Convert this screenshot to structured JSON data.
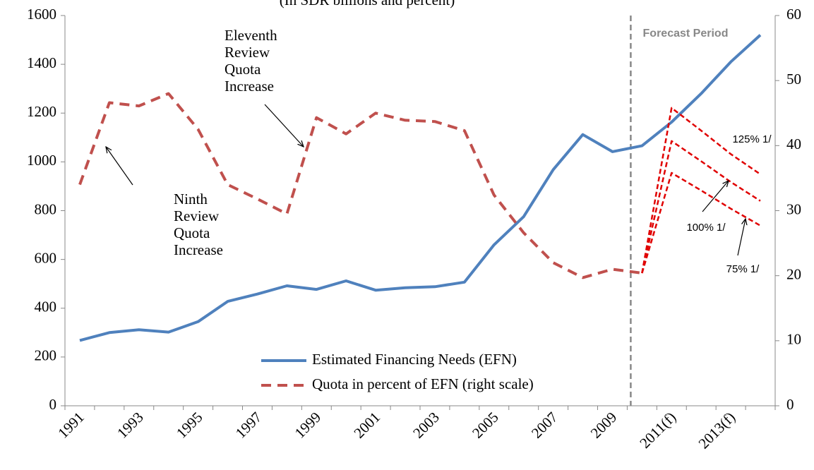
{
  "chart_data": {
    "type": "line",
    "subtitle": "(In SDR billions and percent)",
    "categories": [
      "1991",
      null,
      "1993",
      null,
      "1995",
      null,
      "1997",
      null,
      "1999",
      null,
      "2001",
      null,
      "2003",
      null,
      "2005",
      null,
      "2007",
      null,
      "2009",
      null,
      "2011(f)",
      null,
      "2013(f)",
      null
    ],
    "series": [
      {
        "name": "Estimated Financing Needs (EFN)",
        "color": "#4f81bd",
        "dashed": false,
        "values": [
          268,
          300,
          312,
          302,
          345,
          428,
          458,
          492,
          477,
          512,
          474,
          484,
          488,
          507,
          660,
          775,
          968,
          1112,
          1042,
          1066,
          1163,
          1280,
          1410,
          1520
        ]
      },
      {
        "name": "Quota in percent of EFN (right scale)",
        "color": "#c0504d",
        "dashed": true,
        "axis": "y2",
        "values": [
          34,
          46.6,
          46.1,
          48,
          42.5,
          34,
          31.8,
          29.5,
          44.3,
          41.8,
          45,
          43.9,
          43.7,
          42.3,
          32.4,
          26.6,
          22,
          19.7,
          21,
          20.4,
          null,
          null,
          null,
          null
        ]
      },
      {
        "label": "125% 1/",
        "color": "#e00000",
        "dashed": true,
        "axis": "y2",
        "values": [
          null,
          null,
          null,
          null,
          null,
          null,
          null,
          null,
          null,
          null,
          null,
          null,
          null,
          null,
          null,
          null,
          null,
          null,
          null,
          20.4,
          45.8,
          42.3,
          38.7,
          35.6
        ]
      },
      {
        "label": "100% 1/",
        "color": "#e00000",
        "dashed": true,
        "axis": "y2",
        "values": [
          null,
          null,
          null,
          null,
          null,
          null,
          null,
          null,
          null,
          null,
          null,
          null,
          null,
          null,
          null,
          null,
          null,
          null,
          null,
          20.4,
          40.7,
          37.6,
          34.4,
          31.5
        ]
      },
      {
        "label": "75% 1/",
        "color": "#e00000",
        "dashed": true,
        "axis": "y2",
        "values": [
          null,
          null,
          null,
          null,
          null,
          null,
          null,
          null,
          null,
          null,
          null,
          null,
          null,
          null,
          null,
          null,
          null,
          null,
          null,
          20.4,
          35.8,
          33.1,
          30.3,
          27.7
        ]
      }
    ],
    "ylim": [
      0,
      1600
    ],
    "yticks": [
      0,
      200,
      400,
      600,
      800,
      1000,
      1200,
      1400,
      1600
    ],
    "y2lim": [
      0,
      60
    ],
    "y2ticks": [
      0,
      10,
      20,
      30,
      40,
      50,
      60
    ],
    "grid": false,
    "legend": "lower center",
    "annotations": [
      {
        "lines": [
          "Eleventh",
          "Review",
          "Quota",
          "Increase"
        ]
      },
      {
        "lines": [
          "Ninth",
          "Review",
          "Quota",
          "Increase"
        ]
      },
      {
        "text": "Forecast Period"
      }
    ]
  }
}
